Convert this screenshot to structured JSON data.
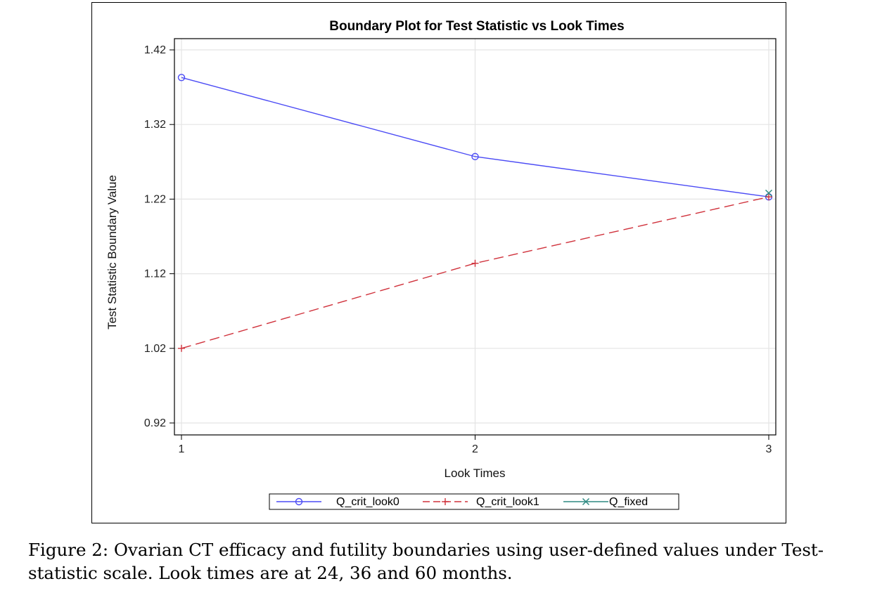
{
  "chart_data": {
    "type": "line",
    "title": "Boundary Plot for Test Statistic vs Look Times",
    "xlabel": "Look Times",
    "ylabel": "Test Statistic Boundary Value",
    "x": [
      1,
      2,
      3
    ],
    "xticks": [
      "1",
      "2",
      "3"
    ],
    "yticks": [
      "0.92",
      "1.02",
      "1.12",
      "1.22",
      "1.32",
      "1.42"
    ],
    "ylim": [
      0.92,
      1.42
    ],
    "grid": true,
    "legend_position": "bottom",
    "series": [
      {
        "name": "Q_crit_look0",
        "x": [
          1,
          2,
          3
        ],
        "values": [
          1.383,
          1.277,
          1.223
        ],
        "color": "#4b4bf5",
        "dash": "solid",
        "marker": "circle"
      },
      {
        "name": "Q_crit_look1",
        "x": [
          1,
          2,
          3
        ],
        "values": [
          1.02,
          1.134,
          1.223
        ],
        "color": "#d0323c",
        "dash": "dashed",
        "marker": "plus"
      },
      {
        "name": "Q_fixed",
        "x": [
          3
        ],
        "values": [
          1.228
        ],
        "color": "#2f8a82",
        "dash": "solid",
        "marker": "x"
      }
    ]
  },
  "caption": {
    "line1": "Figure 2: Ovarian CT  efficacy and futility boundaries using user-defined values under Test-",
    "line2": "statistic scale. Look times are at 24, 36 and 60 months."
  }
}
